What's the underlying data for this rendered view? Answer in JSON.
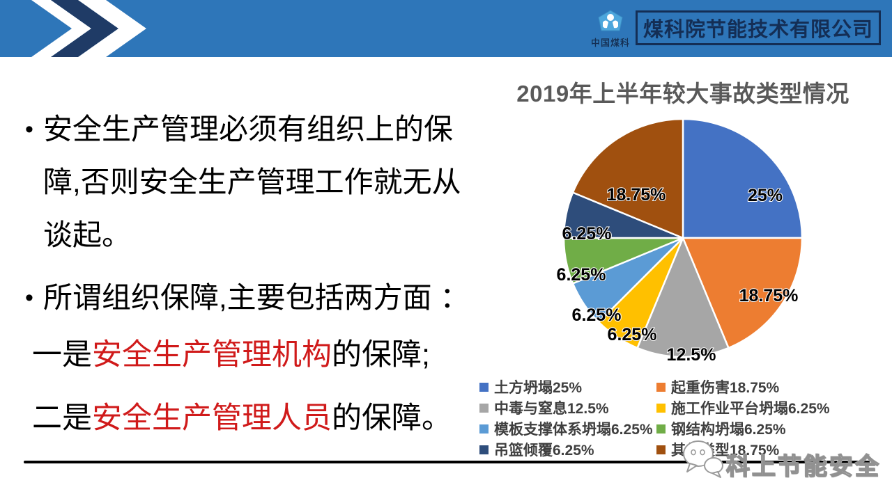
{
  "header": {
    "logo_text": "中国煤科",
    "company_name": "煤科院节能技术有限公司",
    "bar_color": "#2E76B9",
    "accent_navy": "#142E55"
  },
  "content": {
    "bullet1": "安全生产管理必须有组织上的保障,否则安全生产管理工作就无从谈起。",
    "bullet2": "所谓组织保障,主要包括两方面 ：",
    "point1": {
      "prefix": "一是",
      "highlight": "安全生产管理机构",
      "suffix": "的保障;"
    },
    "point2": {
      "prefix": "二是",
      "highlight": "安全生产管理人员",
      "suffix": "的保障。"
    },
    "highlight_color": "#D01A1A"
  },
  "chart_data": {
    "type": "pie",
    "title": "2019年上半年较大事故类型情况",
    "start_angle_deg": -90,
    "direction": "clockwise",
    "legend_position": "bottom",
    "slices": [
      {
        "name": "土方坍塌",
        "value": 25,
        "label": "25%",
        "color": "#4472C4"
      },
      {
        "name": "起重伤害",
        "value": 18.75,
        "label": "18.75%",
        "color": "#ED7D31"
      },
      {
        "name": "中毒与窒息",
        "value": 12.5,
        "label": "12.5%",
        "color": "#A6A6A6"
      },
      {
        "name": "施工作业平台坍塌",
        "value": 6.25,
        "label": "6.25%",
        "color": "#FFC000"
      },
      {
        "name": "模板支撑体系坍塌",
        "value": 6.25,
        "label": "6.25%",
        "color": "#5B9BD5"
      },
      {
        "name": "钢结构坍塌",
        "value": 6.25,
        "label": "6.25%",
        "color": "#70AD47"
      },
      {
        "name": "吊篮倾覆",
        "value": 6.25,
        "label": "6.25%",
        "color": "#2E4D7B"
      },
      {
        "name": "其他类型",
        "value": 18.75,
        "label": "18.75%",
        "color": "#A0500F"
      }
    ],
    "legend_columns": [
      [
        {
          "label": "土方坍塌25%",
          "color": "#4472C4"
        },
        {
          "label": "中毒与窒息12.5%",
          "color": "#A6A6A6"
        },
        {
          "label": "模板支撑体系坍塌6.25%",
          "color": "#5B9BD5"
        },
        {
          "label": "吊篮倾覆6.25%",
          "color": "#2E4D7B"
        }
      ],
      [
        {
          "label": "起重伤害18.75%",
          "color": "#ED7D31"
        },
        {
          "label": "施工作业平台坍塌6.25%",
          "color": "#FFC000"
        },
        {
          "label": "钢结构坍塌6.25%",
          "color": "#70AD47"
        },
        {
          "label": "其他类型18.75%",
          "color": "#A0500F"
        }
      ]
    ]
  },
  "watermark": {
    "text": "科上节能安全"
  }
}
